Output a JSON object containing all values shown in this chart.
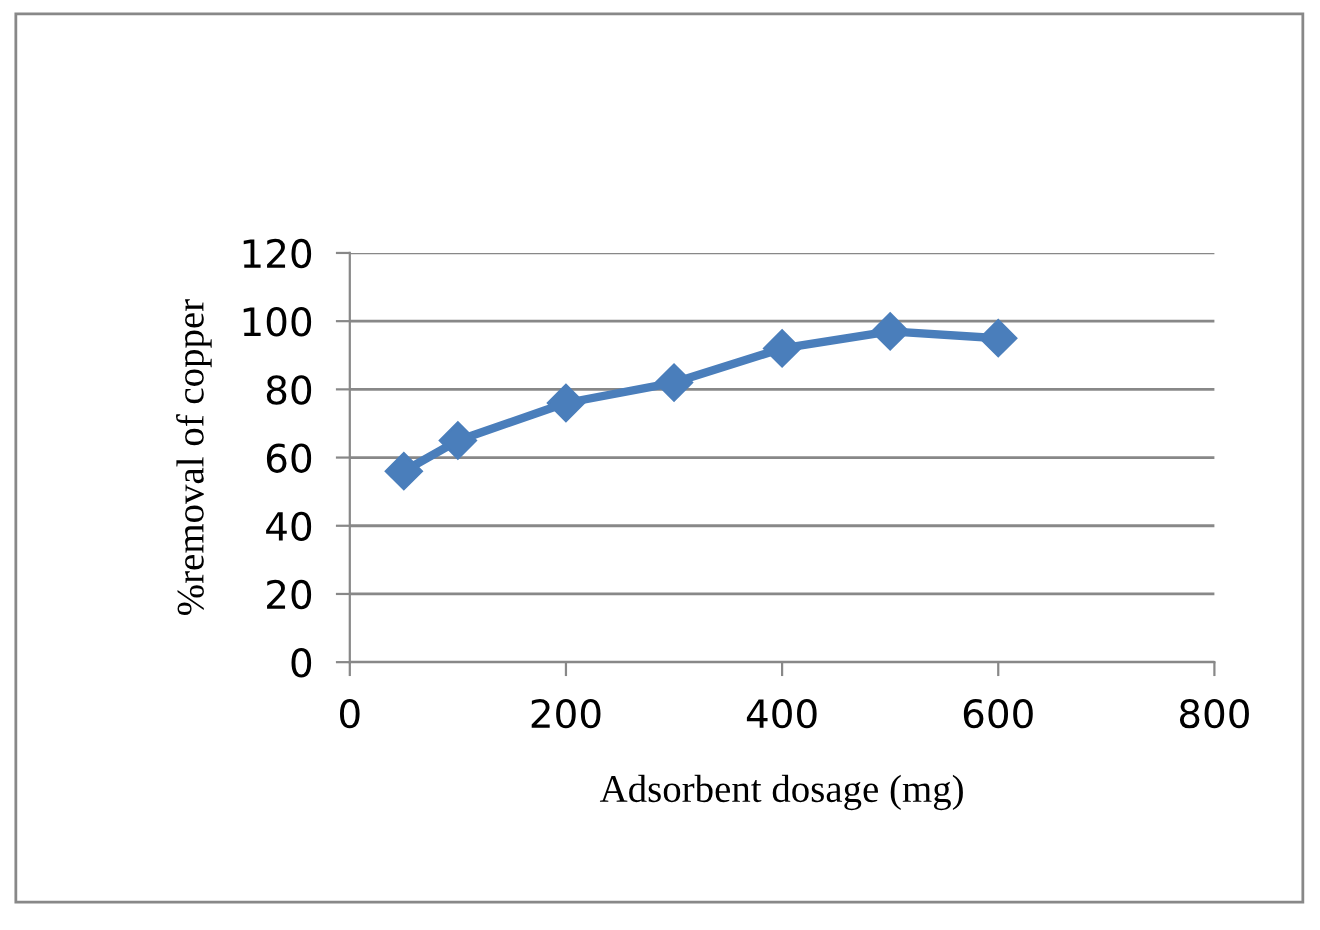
{
  "chart_data": {
    "type": "line",
    "xlabel": "Adsorbent dosage (mg)",
    "ylabel": "%removal of copper",
    "x": [
      50,
      100,
      200,
      300,
      400,
      500,
      600
    ],
    "series": [
      {
        "color": "#4a7ebb",
        "values": [
          56,
          65,
          76,
          82,
          92,
          97,
          95
        ]
      }
    ],
    "xlim": [
      0,
      800
    ],
    "xticks": [
      0,
      200,
      400,
      600,
      800
    ],
    "ylim": [
      0,
      120
    ],
    "yticks": [
      0,
      20,
      40,
      60,
      80,
      100,
      120
    ],
    "grid": "y",
    "marker": "diamond",
    "line_style": "solid",
    "legend": false
  }
}
